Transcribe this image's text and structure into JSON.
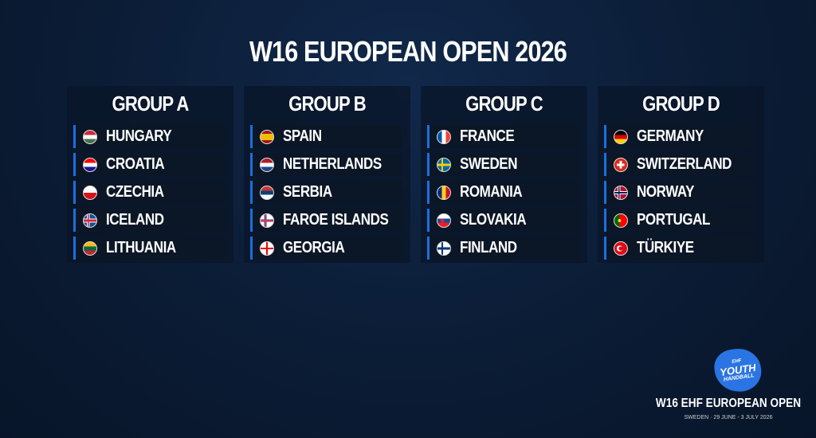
{
  "title": "W16 EUROPEAN OPEN 2026",
  "groups": [
    {
      "name": "GROUP A",
      "teams": [
        {
          "name": "HUNGARY",
          "flag": "hungary"
        },
        {
          "name": "CROATIA",
          "flag": "croatia"
        },
        {
          "name": "CZECHIA",
          "flag": "czechia"
        },
        {
          "name": "ICELAND",
          "flag": "iceland"
        },
        {
          "name": "LITHUANIA",
          "flag": "lithuania"
        }
      ]
    },
    {
      "name": "GROUP B",
      "teams": [
        {
          "name": "SPAIN",
          "flag": "spain"
        },
        {
          "name": "NETHERLANDS",
          "flag": "netherlands"
        },
        {
          "name": "SERBIA",
          "flag": "serbia"
        },
        {
          "name": "FAROE ISLANDS",
          "flag": "faroe"
        },
        {
          "name": "GEORGIA",
          "flag": "georgia"
        }
      ]
    },
    {
      "name": "GROUP C",
      "teams": [
        {
          "name": "FRANCE",
          "flag": "france"
        },
        {
          "name": "SWEDEN",
          "flag": "sweden"
        },
        {
          "name": "ROMANIA",
          "flag": "romania"
        },
        {
          "name": "SLOVAKIA",
          "flag": "slovakia"
        },
        {
          "name": "FINLAND",
          "flag": "finland"
        }
      ]
    },
    {
      "name": "GROUP D",
      "teams": [
        {
          "name": "GERMANY",
          "flag": "germany"
        },
        {
          "name": "SWITZERLAND",
          "flag": "switzerland"
        },
        {
          "name": "NORWAY",
          "flag": "norway"
        },
        {
          "name": "PORTUGAL",
          "flag": "portugal"
        },
        {
          "name": "TÜRKIYE",
          "flag": "turkiye"
        }
      ]
    }
  ],
  "logo": {
    "ehf": "EHF",
    "youth": "YOUTH",
    "handball": "HANDBALL"
  },
  "event": {
    "name": "W16 EHF EUROPEAN OPEN",
    "details": "SWEDEN · 29 JUNE - 3 JULY 2026"
  },
  "colors": {
    "accent": "#1a6fe0",
    "background": "#0b1c35"
  }
}
